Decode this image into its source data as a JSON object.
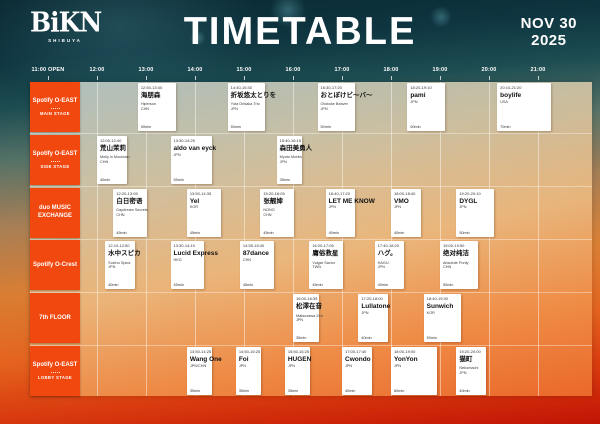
{
  "header": {
    "logo": "BiKN",
    "logo_sub": "SHIBUYA",
    "title": "TIMETABLE",
    "date_top": "NOV 30",
    "date_bottom": "2025"
  },
  "colors": {
    "accent_orange": "#F1480F",
    "card_bg": "#FFFFFF",
    "text_light": "#FFFFFF"
  },
  "chart_data": {
    "type": "gantt-timetable",
    "x_axis": {
      "open_label": "11:00 OPEN",
      "hours": [
        "12:00",
        "13:00",
        "14:00",
        "15:00",
        "16:00",
        "17:00",
        "18:00",
        "19:00",
        "20:00",
        "21:00"
      ],
      "range": [
        "11:00",
        "22:00"
      ]
    },
    "stages": [
      {
        "venue": "Spotify O-EAST",
        "sub": "MAIN STAGE",
        "acts": [
          {
            "time": "12:50-13:40",
            "start": "12:50",
            "end": "13:40",
            "name": "海朋森",
            "roman": "Hiperson",
            "country": "CHN",
            "dur": "50min"
          },
          {
            "time": "14:40-15:30",
            "start": "14:40",
            "end": "15:30",
            "name": "折坂悠太とりを",
            "roman": "Yuta Orisaka Trio",
            "country": "JPN",
            "dur": "50min"
          },
          {
            "time": "16:30-17:20",
            "start": "16:30",
            "end": "17:20",
            "name": "おとぼけビ〜バ〜",
            "roman": "Otoboke Beaver",
            "country": "JPN",
            "dur": "50min"
          },
          {
            "time": "18:20-19:10",
            "start": "18:20",
            "end": "19:10",
            "name": "pami",
            "roman": "",
            "country": "JPN",
            "dur": "50min"
          },
          {
            "time": "20:10-21:20",
            "start": "20:10",
            "end": "21:20",
            "name": "boylife",
            "roman": "",
            "country": "USA",
            "dur": "70min"
          }
        ]
      },
      {
        "venue": "Spotify O-EAST",
        "sub": "SIDE STAGE",
        "acts": [
          {
            "time": "12:00-12:40",
            "start": "12:00",
            "end": "12:40",
            "name": "荒山茉莉",
            "roman": "Molly in Mountain",
            "country": "CHN",
            "dur": "40min"
          },
          {
            "time": "13:30-14:25",
            "start": "13:30",
            "end": "14:25",
            "name": "aldo van eyck",
            "roman": "",
            "country": "JPN",
            "dur": "55min"
          },
          {
            "time": "15:40-16:15",
            "start": "15:40",
            "end": "16:15",
            "name": "森田美勇人",
            "roman": "Myuto Morita",
            "country": "JPN",
            "dur": "35min"
          }
        ]
      },
      {
        "venue": "duo MUSIC EXCHANGE",
        "sub": "",
        "acts": [
          {
            "time": "12:20-13:05",
            "start": "12:20",
            "end": "13:05",
            "name": "白日密语",
            "roman": "Daydream Secrets",
            "country": "CHN",
            "dur": "45min"
          },
          {
            "time": "13:50-14:35",
            "start": "13:50",
            "end": "14:35",
            "name": "Yel",
            "roman": "",
            "country": "KOR",
            "dur": "45min"
          },
          {
            "time": "15:20-16:05",
            "start": "15:20",
            "end": "16:05",
            "name": "张靓婶",
            "roman": "NONO",
            "country": "CHN",
            "dur": "45min"
          },
          {
            "time": "16:40-17:20",
            "start": "16:40",
            "end": "17:20",
            "name": "LET ME KNOW",
            "roman": "",
            "country": "JPN",
            "dur": "40min"
          },
          {
            "time": "18:00-18:40",
            "start": "18:00",
            "end": "18:40",
            "name": "VMO",
            "roman": "",
            "country": "JPN",
            "dur": "40min"
          },
          {
            "time": "19:20-20:10",
            "start": "19:20",
            "end": "20:10",
            "name": "DYGL",
            "roman": "",
            "country": "JPN",
            "dur": "50min"
          }
        ]
      },
      {
        "venue": "Spotify O-Crest",
        "sub": "",
        "acts": [
          {
            "time": "12:10-12:50",
            "start": "12:10",
            "end": "12:50",
            "name": "水中スピカ",
            "roman": "Suichu Spica",
            "country": "JPN",
            "dur": "40min"
          },
          {
            "time": "13:30-14:15",
            "start": "13:30",
            "end": "14:15",
            "name": "Lucid Express",
            "roman": "",
            "country": "HKG",
            "dur": "45min"
          },
          {
            "time": "14:55-15:40",
            "start": "14:55",
            "end": "15:40",
            "name": "87dance",
            "roman": "",
            "country": "CHN",
            "dur": "45min"
          },
          {
            "time": "16:20-17:05",
            "start": "16:20",
            "end": "17:05",
            "name": "庸俗救星",
            "roman": "Vulgar Savior",
            "country": "TWN",
            "dur": "45min"
          },
          {
            "time": "17:40-18:20",
            "start": "17:40",
            "end": "18:20",
            "name": "ハグ。",
            "roman": "HAGU.",
            "country": "JPN",
            "dur": "40min"
          },
          {
            "time": "19:00-19:50",
            "start": "19:00",
            "end": "19:50",
            "name": "绝对纯洁",
            "roman": "Absolute Purity",
            "country": "CHN",
            "dur": "50min"
          }
        ]
      },
      {
        "venue": "7th FLOOR",
        "sub": "",
        "acts": [
          {
            "time": "16:00-16:35",
            "start": "16:00",
            "end": "16:35",
            "name": "松澤在音",
            "roman": "Matsuzawa Zen",
            "country": "JPN",
            "dur": "35min"
          },
          {
            "time": "17:20-18:00",
            "start": "17:20",
            "end": "18:00",
            "name": "Lullatone",
            "roman": "",
            "country": "JPN",
            "dur": "40min"
          },
          {
            "time": "18:40-19:30",
            "start": "18:40",
            "end": "19:30",
            "name": "Sunwich",
            "roman": "",
            "country": "KOR",
            "dur": "50min"
          }
        ]
      },
      {
        "venue": "Spotify O-EAST",
        "sub": "LOBBY STAGE",
        "acts": [
          {
            "time": "13:50-14:25",
            "start": "13:50",
            "end": "14:25",
            "name": "Wang One",
            "roman": "",
            "country": "JPN/CHN",
            "dur": "35min"
          },
          {
            "time": "14:50-15:25",
            "start": "14:50",
            "end": "15:25",
            "name": "Foi",
            "roman": "",
            "country": "JPN",
            "dur": "35min"
          },
          {
            "time": "15:50-16:25",
            "start": "15:50",
            "end": "16:25",
            "name": "HUGEN",
            "roman": "",
            "country": "JPN",
            "dur": "35min"
          },
          {
            "time": "17:00-17:40",
            "start": "17:00",
            "end": "17:40",
            "name": "Cwondo",
            "roman": "",
            "country": "JPN",
            "dur": "40min"
          },
          {
            "time": "18:00-19:00",
            "start": "18:00",
            "end": "19:00",
            "name": "YonYon",
            "roman": "",
            "country": "JPN",
            "dur": "60min"
          },
          {
            "time": "19:20-20:00",
            "start": "19:20",
            "end": "20:00",
            "name": "猫町",
            "roman": "Nekomachi",
            "country": "JPN",
            "dur": "40min"
          }
        ]
      }
    ]
  }
}
